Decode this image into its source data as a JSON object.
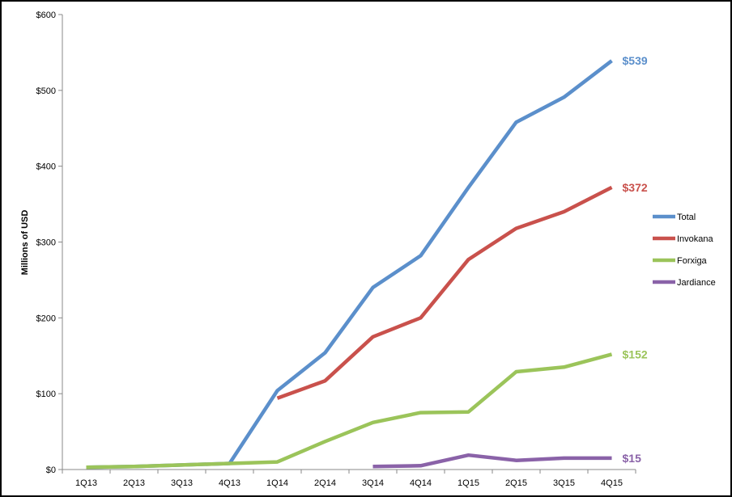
{
  "chart_data": {
    "type": "line",
    "title": "",
    "xlabel": "",
    "ylabel": "Millions of USD",
    "categories": [
      "1Q13",
      "2Q13",
      "3Q13",
      "4Q13",
      "1Q14",
      "2Q14",
      "3Q14",
      "4Q14",
      "1Q15",
      "2Q15",
      "3Q15",
      "4Q15"
    ],
    "ylim": [
      0,
      600
    ],
    "yticks": [
      0,
      100,
      200,
      300,
      400,
      500,
      600
    ],
    "ytick_labels": [
      "$0",
      "$100",
      "$200",
      "$300",
      "$400",
      "$500",
      "$600"
    ],
    "grid": false,
    "legend_position": "right",
    "series": [
      {
        "name": "Total",
        "color": "#5B8FCB",
        "values": [
          3,
          4,
          6,
          8,
          104,
          154,
          240,
          282,
          372,
          458,
          491,
          539
        ],
        "end_label": "$539"
      },
      {
        "name": "Invokana",
        "color": "#C9514C",
        "values": [
          null,
          null,
          null,
          null,
          94,
          117,
          175,
          200,
          277,
          318,
          340,
          372
        ],
        "end_label": "$372"
      },
      {
        "name": "Forxiga",
        "color": "#9BC45A",
        "values": [
          3,
          4,
          6,
          8,
          10,
          37,
          62,
          75,
          76,
          129,
          135,
          152
        ],
        "end_label": "$152"
      },
      {
        "name": "Jardiance",
        "color": "#8A62A8",
        "values": [
          null,
          null,
          null,
          null,
          null,
          null,
          4,
          5,
          19,
          12,
          15,
          15
        ],
        "end_label": "$15"
      }
    ]
  }
}
